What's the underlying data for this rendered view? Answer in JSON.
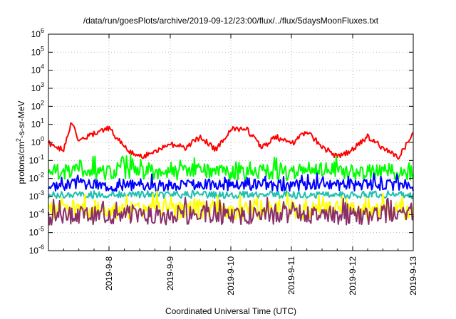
{
  "chart_data": {
    "type": "line",
    "title": "/data/run/goesPlots/archive/2019-09-12/23:00/flux/../flux/5daysMoonFluxes.txt",
    "xlabel": "Coordinated Universal Time (UTC)",
    "ylabel_parts": {
      "prefix": "protons/cm",
      "exponent": "2",
      "suffix": "-s-sr-MeV"
    },
    "y_scale": "log",
    "ylim": [
      1e-06,
      1000000.0
    ],
    "y_ticks": [
      {
        "base": "10",
        "exp": "-6",
        "value": 1e-06
      },
      {
        "base": "10",
        "exp": "-5",
        "value": 1e-05
      },
      {
        "base": "10",
        "exp": "-4",
        "value": 0.0001
      },
      {
        "base": "10",
        "exp": "-3",
        "value": 0.001
      },
      {
        "base": "10",
        "exp": "-2",
        "value": 0.01
      },
      {
        "base": "10",
        "exp": "-1",
        "value": 0.1
      },
      {
        "base": "10",
        "exp": "0",
        "value": 1
      },
      {
        "base": "10",
        "exp": "1",
        "value": 10
      },
      {
        "base": "10",
        "exp": "2",
        "value": 100
      },
      {
        "base": "10",
        "exp": "3",
        "value": 1000
      },
      {
        "base": "10",
        "exp": "4",
        "value": 10000
      },
      {
        "base": "10",
        "exp": "5",
        "value": 100000
      },
      {
        "base": "10",
        "exp": "6",
        "value": 1000000
      }
    ],
    "xlim": [
      "2019-09-07T00:00",
      "2019-09-13T00:00"
    ],
    "x_ticks": [
      "2019-9-8",
      "2019-9-9",
      "2019-9-10",
      "2019-9-11",
      "2019-9-12",
      "2019-9-13"
    ],
    "grid": true,
    "series": [
      {
        "color": "#ff0000",
        "x": [
          "2019-09-07T00:00",
          "2019-09-07T06:00",
          "2019-09-07T09:00",
          "2019-09-07T12:00",
          "2019-09-07T18:00",
          "2019-09-08T00:00",
          "2019-09-08T06:00",
          "2019-09-08T12:00",
          "2019-09-08T18:00",
          "2019-09-09T00:00",
          "2019-09-09T06:00",
          "2019-09-09T12:00",
          "2019-09-09T18:00",
          "2019-09-10T00:00",
          "2019-09-10T06:00",
          "2019-09-10T12:00",
          "2019-09-10T18:00",
          "2019-09-11T00:00",
          "2019-09-11T06:00",
          "2019-09-11T12:00",
          "2019-09-11T18:00",
          "2019-09-12T00:00",
          "2019-09-12T06:00",
          "2019-09-12T12:00",
          "2019-09-12T18:00",
          "2019-09-13T00:00"
        ],
        "values": [
          0.9,
          0.35,
          15,
          1.2,
          3,
          6,
          0.5,
          0.15,
          0.3,
          0.8,
          0.5,
          2,
          0.4,
          5,
          6,
          0.5,
          2,
          0.8,
          4,
          0.6,
          0.15,
          0.4,
          2,
          0.5,
          0.15,
          3
        ]
      },
      {
        "color": "#00ff00",
        "x": [
          "2019-09-07T00:00",
          "2019-09-07T12:00",
          "2019-09-08T00:00",
          "2019-09-08T12:00",
          "2019-09-09T00:00",
          "2019-09-09T12:00",
          "2019-09-10T00:00",
          "2019-09-10T12:00",
          "2019-09-11T00:00",
          "2019-09-11T12:00",
          "2019-09-12T00:00",
          "2019-09-12T12:00",
          "2019-09-13T00:00"
        ],
        "values": [
          0.02,
          0.03,
          0.02,
          0.025,
          0.02,
          0.03,
          0.02,
          0.025,
          0.02,
          0.03,
          0.02,
          0.025,
          0.02
        ]
      },
      {
        "color": "#0000ff",
        "x": [
          "2019-09-07T00:00",
          "2019-09-07T12:00",
          "2019-09-08T00:00",
          "2019-09-08T12:00",
          "2019-09-09T00:00",
          "2019-09-09T12:00",
          "2019-09-10T00:00",
          "2019-09-10T12:00",
          "2019-09-11T00:00",
          "2019-09-11T12:00",
          "2019-09-12T00:00",
          "2019-09-12T12:00",
          "2019-09-13T00:00"
        ],
        "values": [
          0.004,
          0.005,
          0.004,
          0.0045,
          0.004,
          0.005,
          0.004,
          0.0045,
          0.004,
          0.005,
          0.004,
          0.0045,
          0.004
        ]
      },
      {
        "color": "#20c0b0",
        "x": [
          "2019-09-07T00:00",
          "2019-09-07T12:00",
          "2019-09-08T00:00",
          "2019-09-08T12:00",
          "2019-09-09T00:00",
          "2019-09-09T12:00",
          "2019-09-10T00:00",
          "2019-09-10T12:00",
          "2019-09-11T00:00",
          "2019-09-11T12:00",
          "2019-09-12T00:00",
          "2019-09-12T12:00",
          "2019-09-13T00:00"
        ],
        "values": [
          0.0012,
          0.0013,
          0.0012,
          0.0013,
          0.0012,
          0.0013,
          0.0012,
          0.0013,
          0.0012,
          0.0013,
          0.0012,
          0.0013,
          0.0012
        ]
      },
      {
        "color": "#ffff00",
        "x": [
          "2019-09-07T00:00",
          "2019-09-07T12:00",
          "2019-09-08T00:00",
          "2019-09-08T12:00",
          "2019-09-09T00:00",
          "2019-09-09T12:00",
          "2019-09-10T00:00",
          "2019-09-10T12:00",
          "2019-09-11T00:00",
          "2019-09-11T12:00",
          "2019-09-12T00:00",
          "2019-09-12T12:00",
          "2019-09-13T00:00"
        ],
        "values": [
          0.00015,
          0.0002,
          0.00015,
          0.00018,
          0.00015,
          0.0002,
          0.00015,
          0.00018,
          0.00015,
          0.0002,
          0.00015,
          0.00018,
          0.00015
        ]
      },
      {
        "color": "#8b2f6b",
        "x": [
          "2019-09-07T00:00",
          "2019-09-07T12:00",
          "2019-09-08T00:00",
          "2019-09-08T12:00",
          "2019-09-09T00:00",
          "2019-09-09T12:00",
          "2019-09-10T00:00",
          "2019-09-10T12:00",
          "2019-09-11T00:00",
          "2019-09-11T12:00",
          "2019-09-12T00:00",
          "2019-09-12T12:00",
          "2019-09-13T00:00"
        ],
        "values": [
          8e-05,
          0.0001,
          8e-05,
          0.0001,
          8e-05,
          0.0001,
          8e-05,
          0.0001,
          8e-05,
          0.0001,
          8e-05,
          0.0001,
          8e-05
        ]
      }
    ]
  }
}
